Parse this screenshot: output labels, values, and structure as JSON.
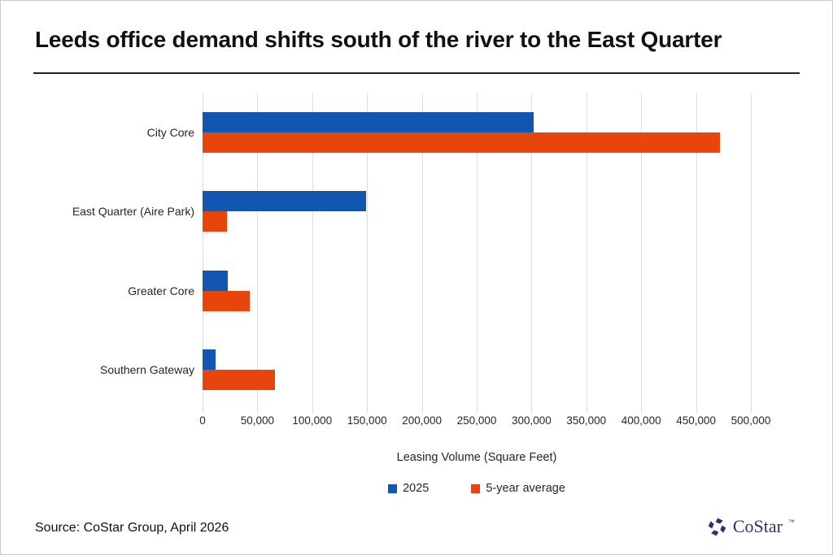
{
  "title": "Leeds office demand shifts south of the river to the East Quarter",
  "source": "Source: CoStar Group, April 2026",
  "logo": {
    "brand": "CoStar",
    "tm": "™",
    "color": "#263569"
  },
  "colors": {
    "series_blue": "#1157B2",
    "series_orange": "#E8450C",
    "gridline": "#dedede",
    "text": "#262626"
  },
  "chart_data": {
    "type": "bar",
    "orientation": "horizontal",
    "title": "Leeds office demand shifts south of the river to the East Quarter",
    "categories": [
      "City Core",
      "East Quarter (Aire Park)",
      "Greater Core",
      "Southern Gateway"
    ],
    "series": [
      {
        "name": "2025",
        "color": "#1157B2",
        "values": [
          302000,
          149000,
          23000,
          12000
        ]
      },
      {
        "name": "5-year average",
        "color": "#E8450C",
        "values": [
          472000,
          22000,
          43000,
          66000
        ]
      }
    ],
    "xlabel": "Leasing Volume (Square Feet)",
    "xlim": [
      0,
      500000
    ],
    "xticks": [
      0,
      50000,
      100000,
      150000,
      200000,
      250000,
      300000,
      350000,
      400000,
      450000,
      500000
    ],
    "xtick_labels": [
      "0",
      "50,000",
      "100,000",
      "150,000",
      "200,000",
      "250,000",
      "300,000",
      "350,000",
      "400,000",
      "450,000",
      "500,000"
    ],
    "grid": true,
    "legend_position": "bottom"
  }
}
